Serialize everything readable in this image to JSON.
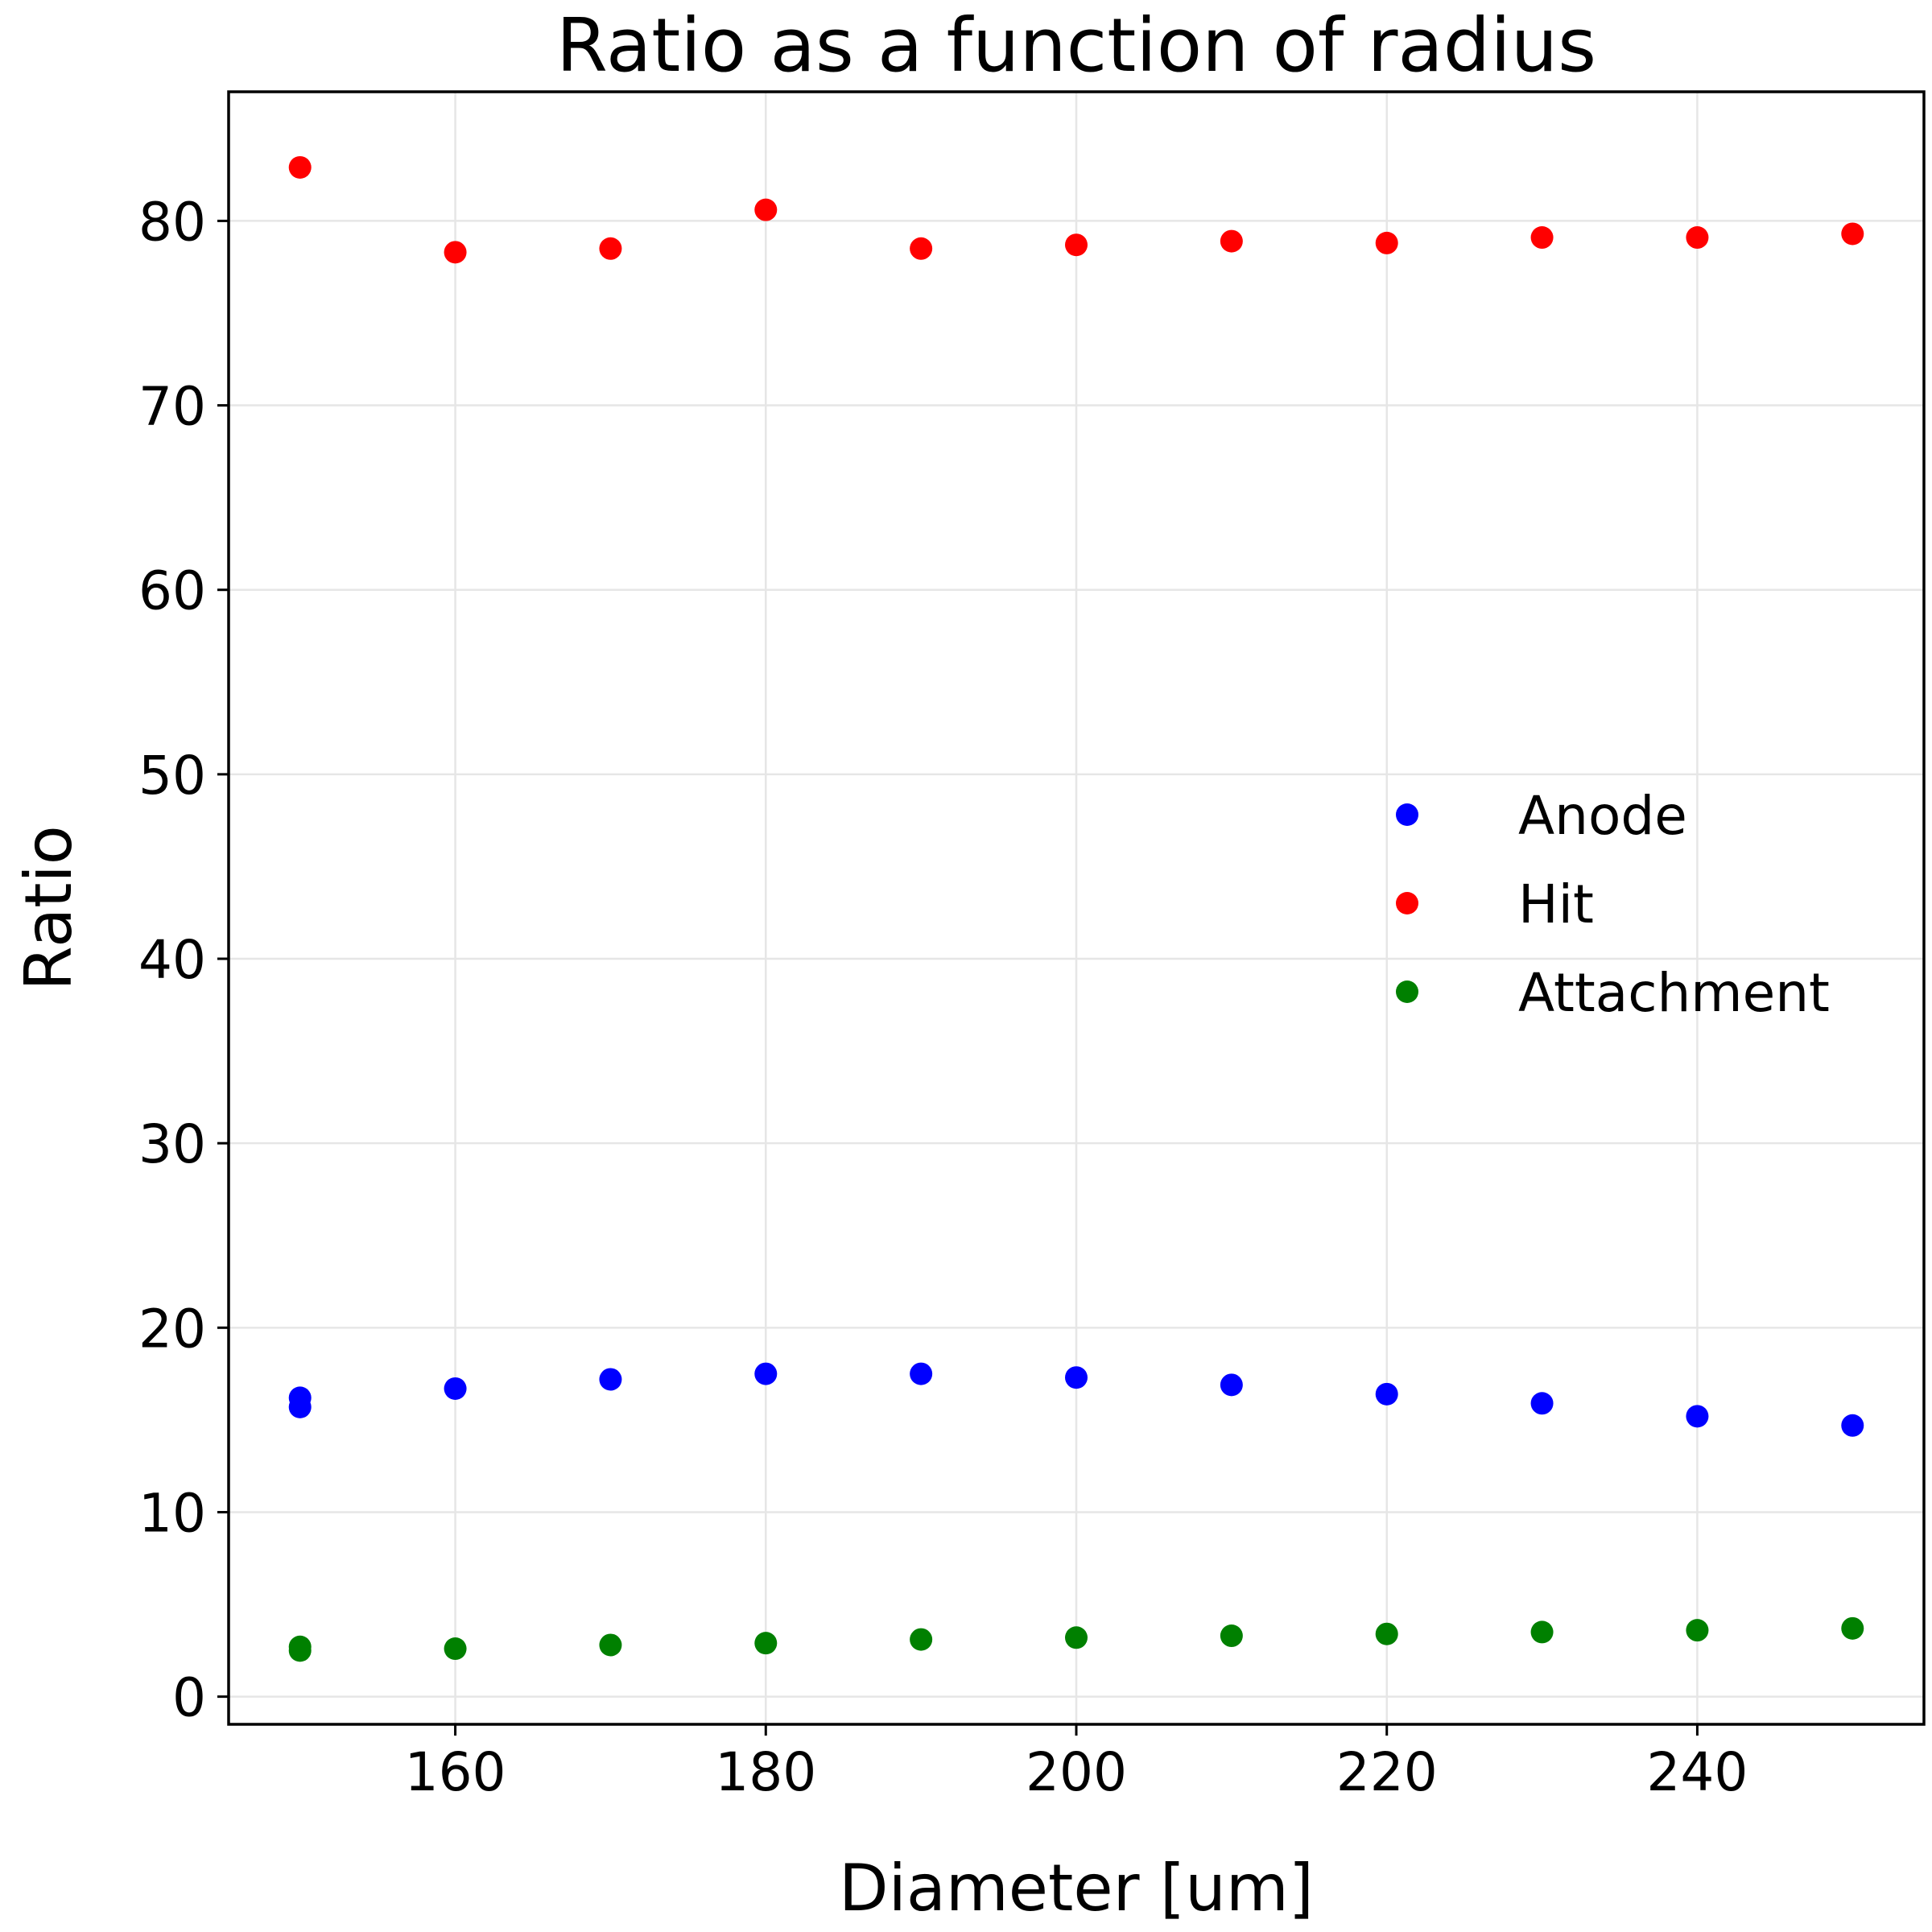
{
  "chart_data": {
    "type": "scatter",
    "title": "Ratio as a function of radius",
    "xlabel": "Diameter [um]",
    "ylabel": "Ratio",
    "xlim": [
      145.4,
      254.6
    ],
    "ylim": [
      -1.5,
      87
    ],
    "xticks": [
      160,
      180,
      200,
      220,
      240
    ],
    "yticks": [
      0,
      10,
      20,
      30,
      40,
      50,
      60,
      70,
      80
    ],
    "grid": true,
    "legend_position": "center-right",
    "series": [
      {
        "name": "Anode",
        "color": "#0000ff",
        "x": [
          150,
          150,
          160,
          170,
          180,
          190,
          200,
          210,
          220,
          230,
          240,
          250
        ],
        "y": [
          16.2,
          15.7,
          16.7,
          17.2,
          17.5,
          17.5,
          17.3,
          16.9,
          16.4,
          15.9,
          15.2,
          14.7
        ]
      },
      {
        "name": "Hit",
        "color": "#ff0000",
        "x": [
          150,
          160,
          170,
          180,
          190,
          200,
          210,
          220,
          230,
          240,
          250
        ],
        "y": [
          82.9,
          78.3,
          78.5,
          80.6,
          78.5,
          78.7,
          78.9,
          78.8,
          79.1,
          79.1,
          79.3
        ]
      },
      {
        "name": "Attachment",
        "color": "#008000",
        "x": [
          150,
          150,
          160,
          170,
          180,
          190,
          200,
          210,
          220,
          230,
          240,
          250
        ],
        "y": [
          2.7,
          2.5,
          2.6,
          2.8,
          2.9,
          3.1,
          3.2,
          3.3,
          3.4,
          3.5,
          3.6,
          3.7
        ]
      }
    ]
  }
}
